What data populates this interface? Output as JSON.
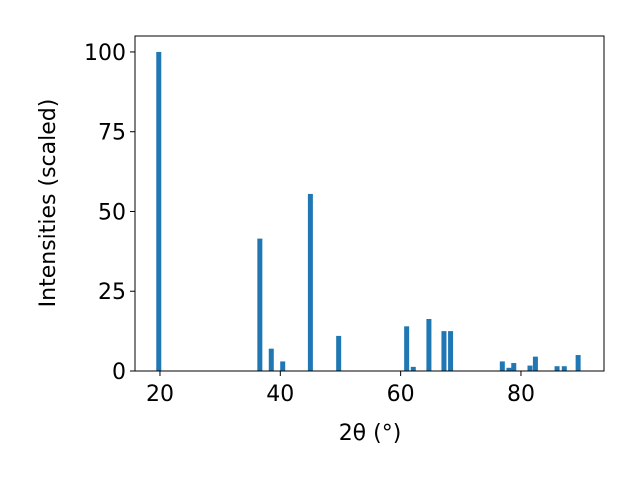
{
  "chart_data": {
    "type": "bar",
    "xlabel": "2θ (°)",
    "ylabel": "Intensities (scaled)",
    "x": [
      19.8,
      36.6,
      38.5,
      40.4,
      45.0,
      49.7,
      61.0,
      62.1,
      64.7,
      67.2,
      68.3,
      76.9,
      78.0,
      78.8,
      81.5,
      82.4,
      86.0,
      87.2,
      89.5
    ],
    "values": [
      100,
      41.5,
      7,
      3,
      55.5,
      11,
      14,
      1.3,
      16.3,
      12.5,
      12.5,
      3,
      1,
      2.5,
      1.7,
      4.5,
      1.5,
      1.5,
      5
    ],
    "color": "#1f77b4",
    "xlim": [
      15.85,
      93.8
    ],
    "xticks": [
      20,
      40,
      60,
      80
    ],
    "ylim": [
      0,
      105
    ],
    "yticks": [
      0,
      25,
      50,
      75,
      100
    ],
    "grid": false
  }
}
